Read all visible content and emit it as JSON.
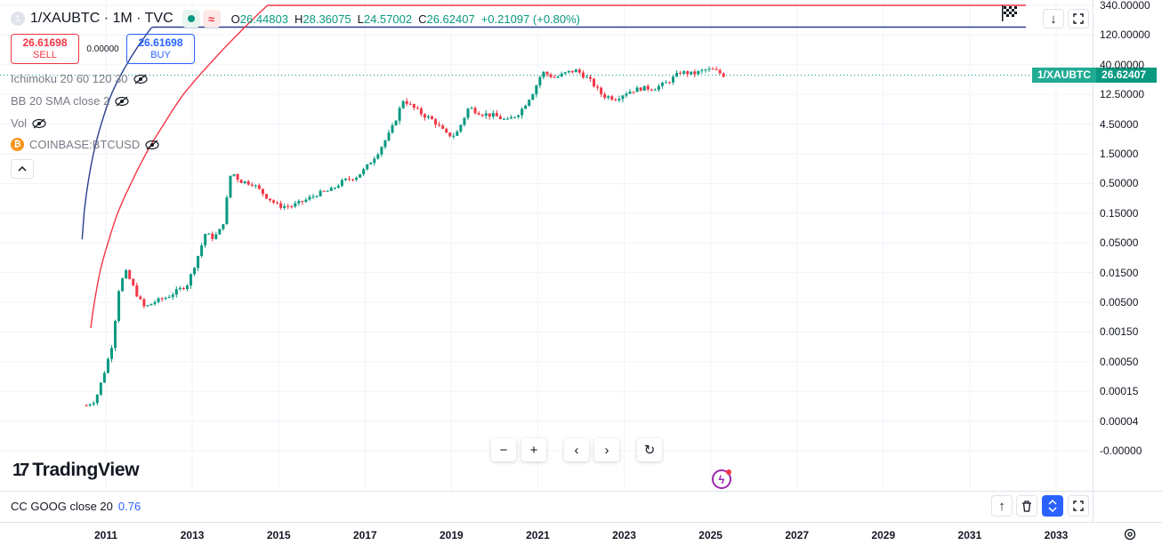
{
  "header": {
    "symbol_title": "1/XAUBTC · 1M · TVC",
    "badge": "1",
    "wave_icon": "≈",
    "ohlc": [
      {
        "k": "O",
        "v": "26.44803"
      },
      {
        "k": "H",
        "v": "28.36075"
      },
      {
        "k": "L",
        "v": "24.57002"
      },
      {
        "k": "C",
        "v": "26.62407"
      },
      {
        "k": "",
        "v": "+0.21097 (+0.80%)"
      }
    ]
  },
  "trade": {
    "sell_price": "26.61698",
    "sell_label": "SELL",
    "spread": "0.00000",
    "buy_price": "26.61698",
    "buy_label": "BUY"
  },
  "indicators": [
    {
      "label": "Ichimoku 20 60 120 30"
    },
    {
      "label": "BB 20 SMA close 2"
    },
    {
      "label": "Vol"
    },
    {
      "label": "COINBASE:BTCUSD"
    }
  ],
  "logo_text": "TradingView",
  "logo_mark": "17",
  "nav": {
    "zoom_out": "−",
    "zoom_in": "+",
    "left": "‹",
    "right": "›",
    "reset": "↻"
  },
  "lower_pane": {
    "label": "CC GOOG close 20",
    "value": "0.76"
  },
  "price_tag": {
    "name": "1/XAUBTC",
    "value": "26.62407"
  },
  "colors": {
    "up": "#089981",
    "down": "#f23645",
    "upper_curve": "#2a3f8f",
    "lower_curve": "#f23645",
    "accent": "#2962ff"
  },
  "icons": [
    "download-arrow-icon",
    "fullscreen-icon",
    "flag-icon",
    "eye-off-icon",
    "chevron-up-icon",
    "bolt-icon",
    "settings-icon",
    "arrow-up-icon",
    "trash-icon",
    "chevrons-updown-icon"
  ],
  "chart_data": {
    "type": "candlestick",
    "title": "1/XAUBTC · 1M · TVC",
    "y_scale": "log",
    "y_tick_labels": [
      "340.00000",
      "120.00000",
      "40.00000",
      "12.50000",
      "4.50000",
      "1.50000",
      "0.50000",
      "0.15000",
      "0.05000",
      "0.01500",
      "0.00500",
      "0.00150",
      "0.00050",
      "0.00015",
      "0.00004",
      "-0.00000"
    ],
    "x_tick_labels": [
      "2011",
      "2013",
      "2015",
      "2017",
      "2019",
      "2021",
      "2023",
      "2025",
      "2027",
      "2029",
      "2031",
      "2033"
    ],
    "x_range": [
      2009.5,
      2034.0
    ],
    "series_points": [
      [
        2010.55,
        8e-05
      ],
      [
        2010.75,
        0.0001
      ],
      [
        2010.95,
        0.0003
      ],
      [
        2011.15,
        0.001
      ],
      [
        2011.3,
        0.008
      ],
      [
        2011.45,
        0.016
      ],
      [
        2011.6,
        0.01
      ],
      [
        2011.75,
        0.006
      ],
      [
        2011.9,
        0.004
      ],
      [
        2012.1,
        0.005
      ],
      [
        2012.4,
        0.006
      ],
      [
        2012.7,
        0.008
      ],
      [
        2012.9,
        0.01
      ],
      [
        2013.1,
        0.025
      ],
      [
        2013.3,
        0.07
      ],
      [
        2013.5,
        0.06
      ],
      [
        2013.7,
        0.09
      ],
      [
        2013.9,
        0.8
      ],
      [
        2014.1,
        0.55
      ],
      [
        2014.4,
        0.5
      ],
      [
        2014.7,
        0.3
      ],
      [
        2015.0,
        0.2
      ],
      [
        2015.3,
        0.2
      ],
      [
        2015.6,
        0.25
      ],
      [
        2015.9,
        0.33
      ],
      [
        2016.2,
        0.38
      ],
      [
        2016.5,
        0.55
      ],
      [
        2016.8,
        0.65
      ],
      [
        2017.0,
        0.85
      ],
      [
        2017.3,
        1.6
      ],
      [
        2017.6,
        3.5
      ],
      [
        2017.9,
        11.0
      ],
      [
        2018.0,
        9.0
      ],
      [
        2018.3,
        6.5
      ],
      [
        2018.6,
        5.0
      ],
      [
        2018.9,
        3.0
      ],
      [
        2019.1,
        3.0
      ],
      [
        2019.4,
        8.0
      ],
      [
        2019.7,
        6.5
      ],
      [
        2020.0,
        6.0
      ],
      [
        2020.3,
        5.0
      ],
      [
        2020.6,
        7.0
      ],
      [
        2020.9,
        14.0
      ],
      [
        2021.1,
        30.0
      ],
      [
        2021.4,
        24.0
      ],
      [
        2021.7,
        30.0
      ],
      [
        2021.9,
        32.0
      ],
      [
        2022.2,
        22.0
      ],
      [
        2022.5,
        12.0
      ],
      [
        2022.8,
        11.0
      ],
      [
        2023.1,
        14.0
      ],
      [
        2023.4,
        16.0
      ],
      [
        2023.7,
        16.0
      ],
      [
        2024.0,
        20.0
      ],
      [
        2024.3,
        30.0
      ],
      [
        2024.6,
        28.0
      ],
      [
        2024.9,
        33.0
      ],
      [
        2025.1,
        32.0
      ],
      [
        2025.3,
        26.62
      ]
    ],
    "upper_curve": "power-law top band",
    "lower_curve": "power-law support band",
    "last_close": 26.62407,
    "grid": true,
    "lower_pane_series": "CC GOOG close 20",
    "lower_pane_value": 0.76
  }
}
